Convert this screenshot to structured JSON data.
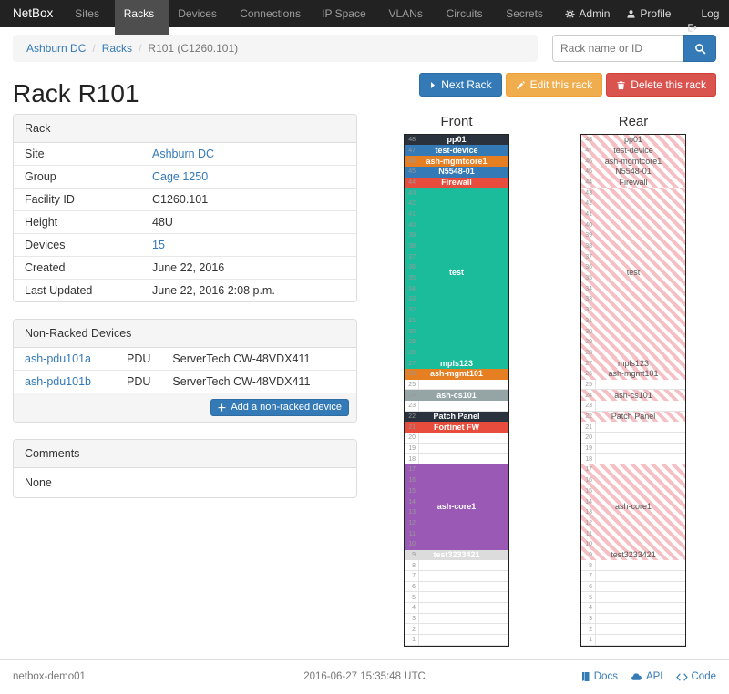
{
  "navbar": {
    "brand": "NetBox",
    "items": [
      "Sites",
      "Racks",
      "Devices",
      "Connections",
      "IP Space",
      "VLANs",
      "Circuits",
      "Secrets"
    ],
    "active_item": "Racks",
    "right_items": [
      {
        "label": "Admin",
        "icon": "gear"
      },
      {
        "label": "Profile",
        "icon": "user"
      },
      {
        "label": "Log out",
        "icon": "logout"
      }
    ]
  },
  "breadcrumb": [
    "Ashburn DC",
    "Racks",
    "R101 (C1260.101)"
  ],
  "search": {
    "placeholder": "Rack name or ID"
  },
  "actions": {
    "next": "Next Rack",
    "edit": "Edit this rack",
    "delete": "Delete this rack"
  },
  "page_title": "Rack R101",
  "rack_panel": {
    "title": "Rack",
    "rows": [
      {
        "label": "Site",
        "value": "Ashburn DC",
        "is_link": true
      },
      {
        "label": "Group",
        "value": "Cage 1250",
        "is_link": true
      },
      {
        "label": "Facility ID",
        "value": "C1260.101"
      },
      {
        "label": "Height",
        "value": "48U"
      },
      {
        "label": "Devices",
        "value": "15",
        "is_link": true
      },
      {
        "label": "Created",
        "value": "June 22, 2016"
      },
      {
        "label": "Last Updated",
        "value": "June 22, 2016 2:08 p.m."
      }
    ]
  },
  "nonracked_panel": {
    "title": "Non-Racked Devices",
    "rows": [
      {
        "name": "ash-pdu101a",
        "role": "PDU",
        "model": "ServerTech CW-48VDX411"
      },
      {
        "name": "ash-pdu101b",
        "role": "PDU",
        "model": "ServerTech CW-48VDX411"
      }
    ],
    "add_label": "Add a non-racked device"
  },
  "comments_panel": {
    "title": "Comments",
    "body": "None"
  },
  "elevation": {
    "front_title": "Front",
    "rear_title": "Rear",
    "total_units": 48,
    "devices": [
      {
        "name": "pp01",
        "top_u": 48,
        "u_height": 1,
        "color": "#29323d",
        "rear": true
      },
      {
        "name": "test-device",
        "top_u": 47,
        "u_height": 1,
        "color": "#337ab7",
        "rear": true
      },
      {
        "name": "ash-mgmtcore1",
        "top_u": 46,
        "u_height": 1,
        "color": "#e67e22",
        "rear": true
      },
      {
        "name": "N5548-01",
        "top_u": 45,
        "u_height": 1,
        "color": "#337ab7",
        "rear": true
      },
      {
        "name": "Firewall",
        "top_u": 44,
        "u_height": 1,
        "color": "#e74c3c",
        "rear": true
      },
      {
        "name": "test",
        "top_u": 43,
        "u_height": 16,
        "color": "#1abc9c",
        "rear": true
      },
      {
        "name": "mpls123",
        "top_u": 27,
        "u_height": 1,
        "color": "#1abc9c",
        "rear": true
      },
      {
        "name": "ash-mgmt101",
        "top_u": 26,
        "u_height": 1,
        "color": "#e67e22",
        "rear": true
      },
      {
        "name": "ash-cs101",
        "top_u": 24,
        "u_height": 1,
        "color": "#95a5a6",
        "rear": true
      },
      {
        "name": "Patch Panel",
        "top_u": 22,
        "u_height": 1,
        "color": "#29323d",
        "rear": true
      },
      {
        "name": "Fortinet FW",
        "top_u": 21,
        "u_height": 1,
        "color": "#e74c3c",
        "rear": false
      },
      {
        "name": "ash-core1",
        "top_u": 17,
        "u_height": 8,
        "color": "#9b59b6",
        "rear": true
      },
      {
        "name": "test3233421",
        "top_u": 9,
        "u_height": 1,
        "color": "#dcdcdc",
        "rear": true
      }
    ]
  },
  "footer": {
    "hostname": "netbox-demo01",
    "timestamp": "2016-06-27 15:35:48 UTC",
    "links": [
      {
        "label": "Docs",
        "icon": "book"
      },
      {
        "label": "API",
        "icon": "cloud"
      },
      {
        "label": "Code",
        "icon": "code"
      }
    ]
  }
}
